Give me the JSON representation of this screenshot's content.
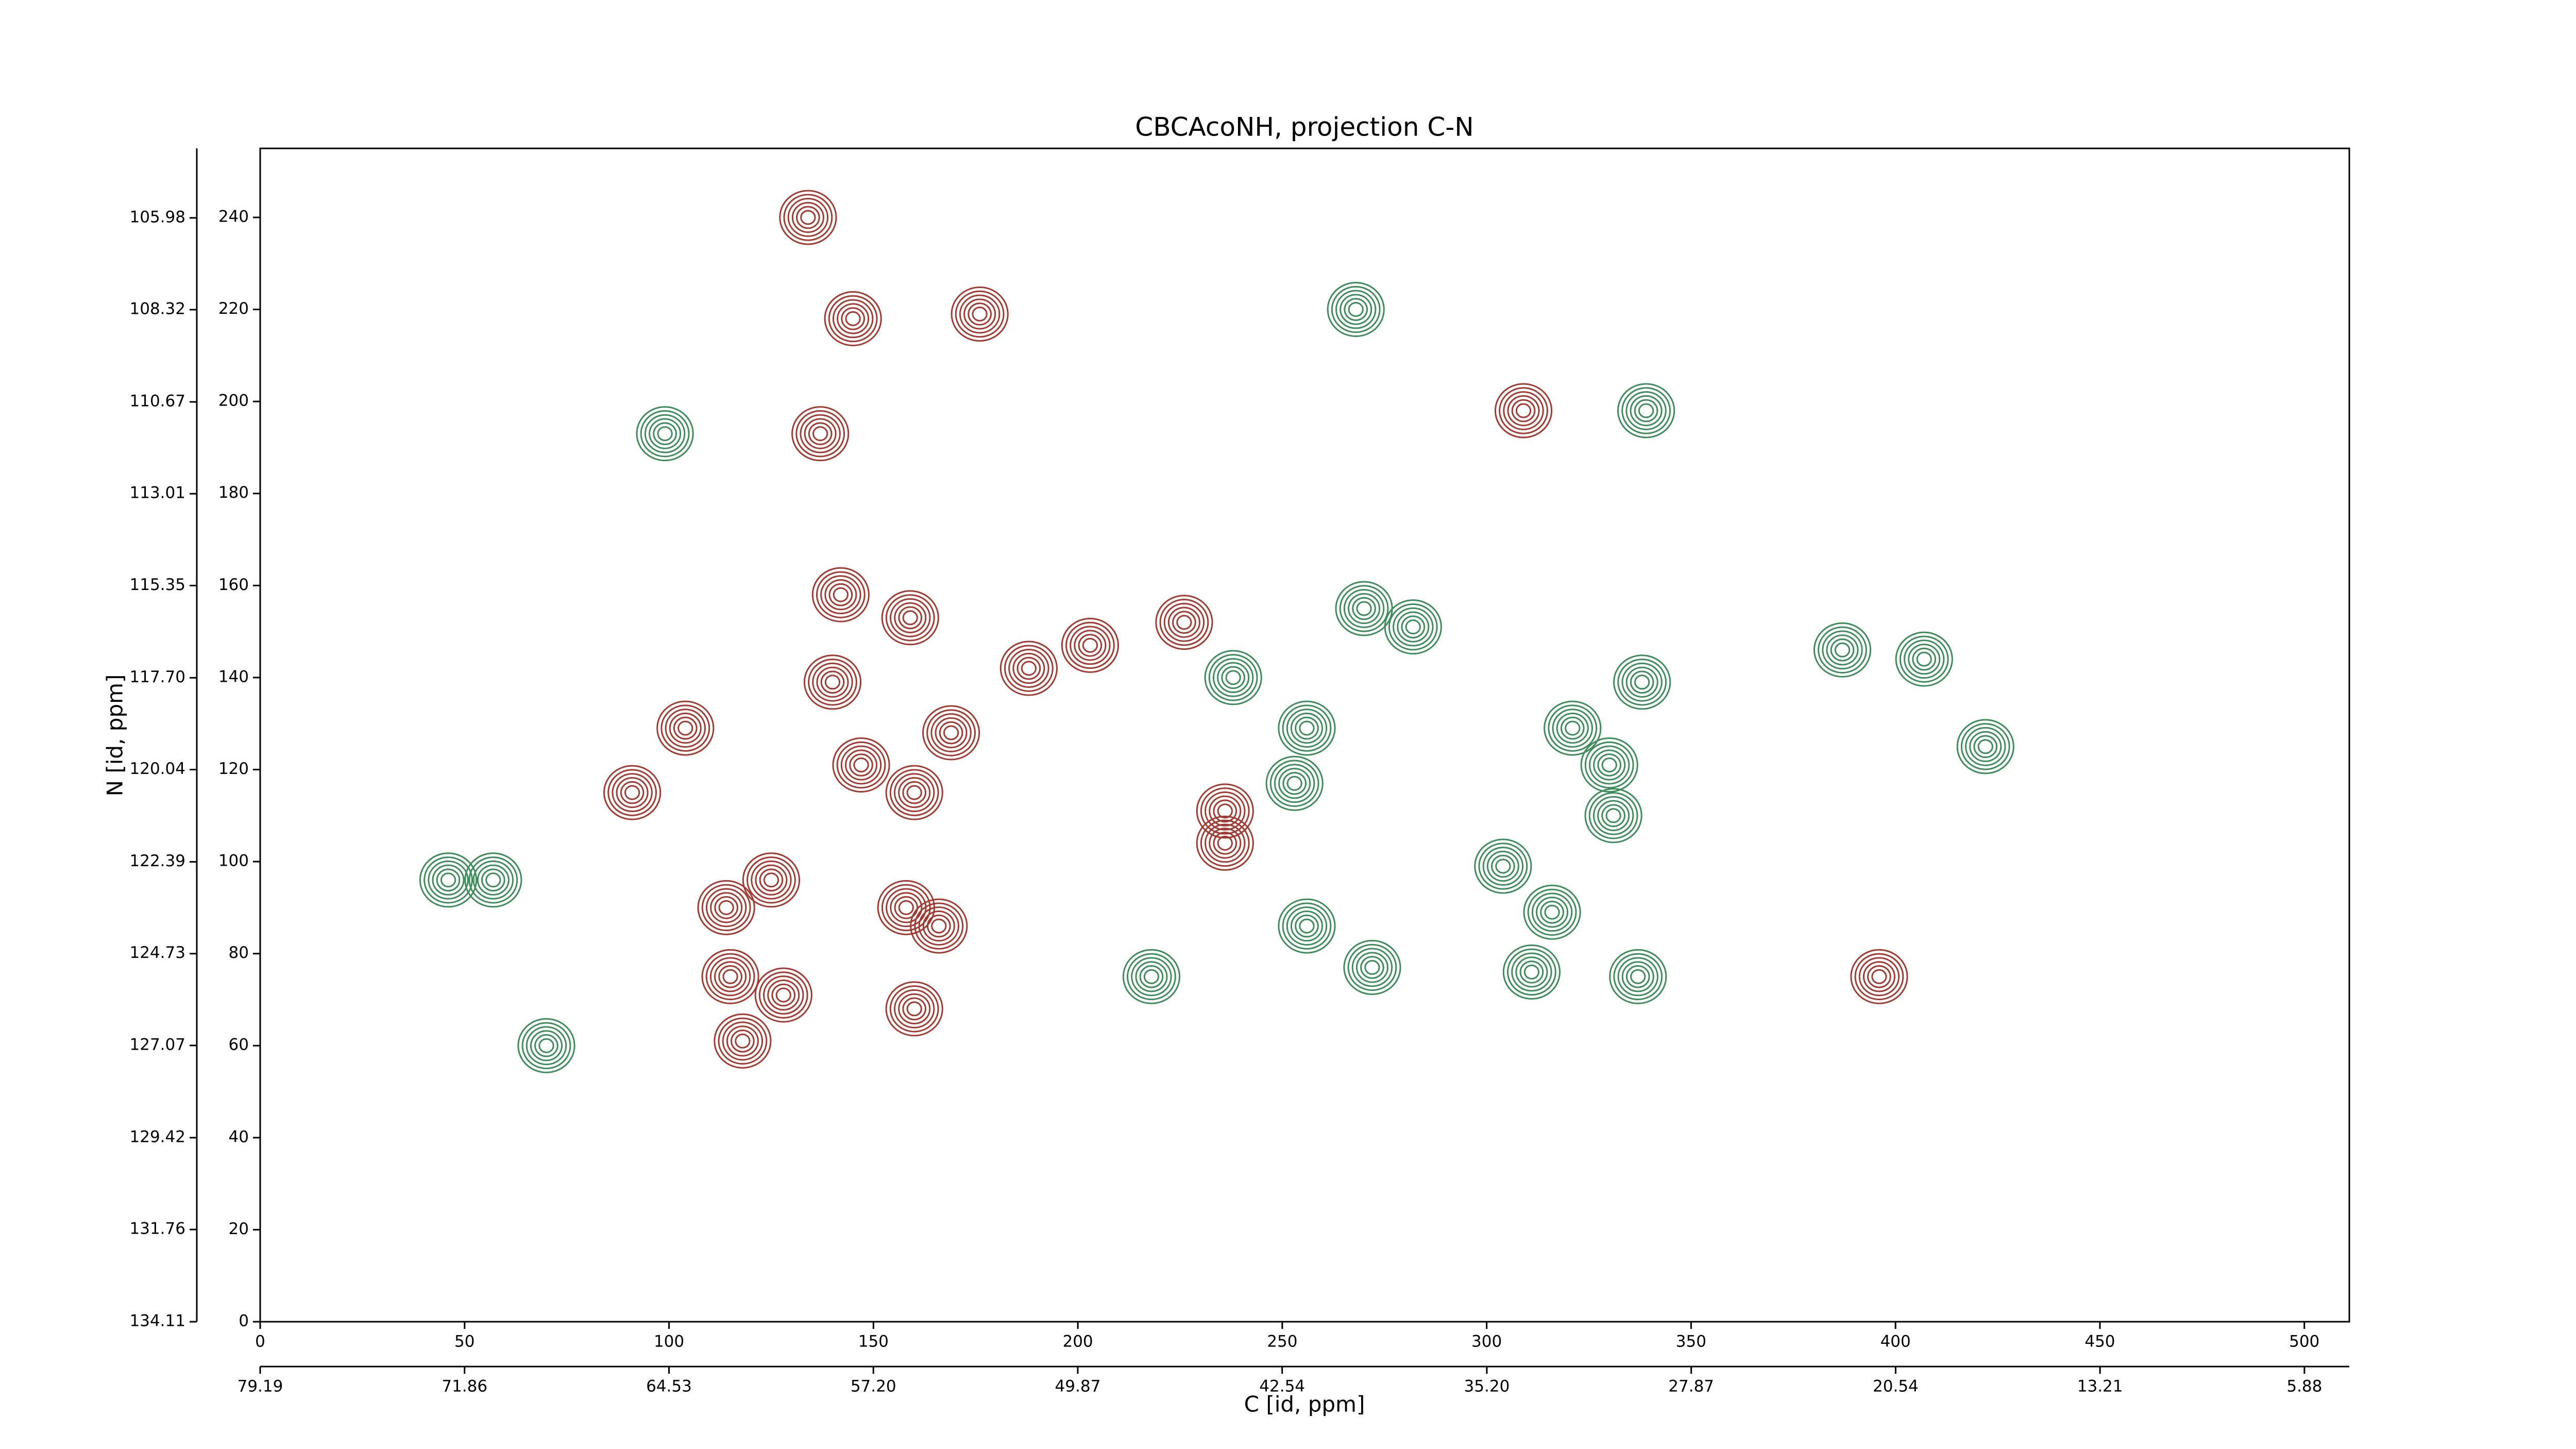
{
  "chart_data": {
    "type": "contour",
    "title": "CBCAcoNH, projection C-N",
    "xlabel": "C [id, ppm]",
    "ylabel": "N [id, ppm]",
    "xlim": [
      0,
      511
    ],
    "ylim": [
      0,
      255
    ],
    "xticks": [
      0,
      50,
      100,
      150,
      200,
      250,
      300,
      350,
      400,
      450,
      500
    ],
    "yticks": [
      0,
      20,
      40,
      60,
      80,
      100,
      120,
      140,
      160,
      180,
      200,
      220,
      240
    ],
    "x2lim": [
      79.19,
      4.27
    ],
    "x2ticks": [
      79.19,
      71.86,
      64.53,
      {
        "value": 57.2,
        "label": "57.20"
      },
      49.87,
      42.54,
      {
        "value": 35.2,
        "label": "35.20"
      },
      27.87,
      20.54,
      13.21,
      5.88
    ],
    "y2lim": [
      134.11,
      104.21
    ],
    "y2ticks": [
      134.11,
      131.76,
      129.42,
      127.07,
      124.73,
      122.39,
      120.04,
      {
        "value": 117.7,
        "label": "117.70"
      },
      115.35,
      113.01,
      110.67,
      108.32,
      105.98
    ],
    "series": [
      {
        "color": "#3d8c5a",
        "x": [
          99,
          46,
          57,
          70,
          268,
          238,
          253,
          256,
          256,
          272,
          270,
          282,
          304,
          316,
          321,
          330,
          331,
          337,
          338,
          407,
          387,
          422,
          218,
          339,
          311
        ],
        "y": [
          193,
          96,
          96,
          60,
          220,
          140,
          117,
          129,
          86,
          77,
          155,
          151,
          99,
          89,
          129,
          121,
          110,
          75,
          139,
          144,
          146,
          125,
          75,
          198,
          76
        ]
      },
      {
        "color": "#a33a32",
        "x": [
          176,
          137,
          145,
          226,
          188,
          203,
          236,
          236,
          118,
          128,
          114,
          125,
          91,
          147,
          160,
          158,
          166,
          160,
          140,
          142,
          159,
          309,
          134,
          396,
          104,
          169,
          115
        ],
        "y": [
          219,
          193,
          218,
          152,
          142,
          147,
          111,
          104,
          61,
          71,
          90,
          96,
          115,
          121,
          115,
          90,
          86,
          68,
          139,
          158,
          153,
          198,
          240,
          75,
          129,
          128,
          75
        ]
      }
    ]
  }
}
